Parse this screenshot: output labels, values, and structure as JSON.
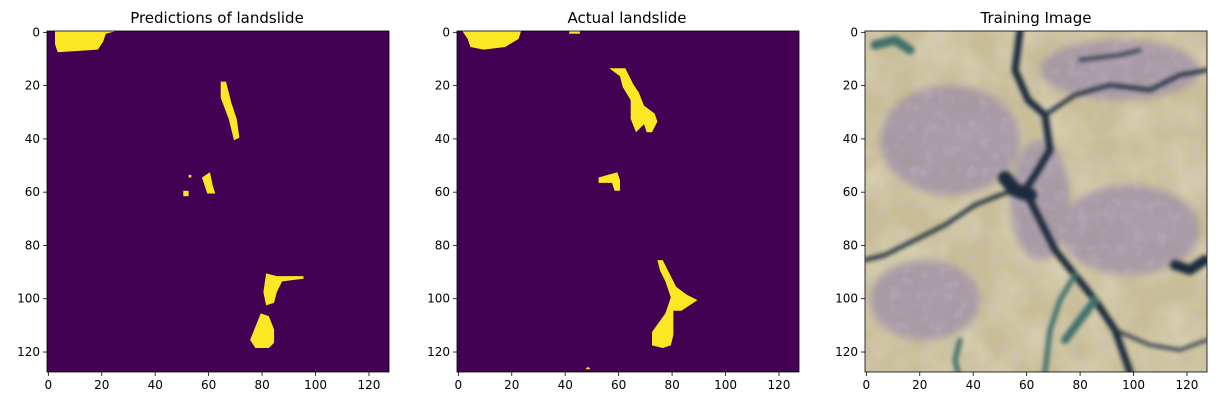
{
  "colors": {
    "background_mask": "#440154",
    "landslide_mask": "#fde725",
    "photo_sand": "#c8bd97",
    "photo_violet": "#9a8aa8",
    "photo_dark_crack": "#1f2c3e",
    "photo_teal": "#3f6f6c"
  },
  "panels": [
    {
      "title": "Predictions of landslide",
      "kind": "binary-mask",
      "xticks": [
        "0",
        "20",
        "40",
        "60",
        "80",
        "100",
        "120"
      ],
      "yticks": [
        "0",
        "20",
        "40",
        "60",
        "80",
        "100",
        "120"
      ],
      "regions": [
        {
          "points": [
            [
              3,
              0
            ],
            [
              26,
              0
            ],
            [
              22,
              1
            ],
            [
              21,
              4
            ],
            [
              19,
              7
            ],
            [
              4,
              8
            ],
            [
              3,
              5
            ]
          ]
        },
        {
          "points": [
            [
              65,
              19
            ],
            [
              67,
              19
            ],
            [
              69,
              27
            ],
            [
              71,
              33
            ],
            [
              72,
              40
            ],
            [
              70,
              41
            ],
            [
              68,
              33
            ],
            [
              65,
              25
            ]
          ]
        },
        {
          "points": [
            [
              58,
              55
            ],
            [
              61,
              53
            ],
            [
              62,
              58
            ],
            [
              63,
              61
            ],
            [
              60,
              61
            ],
            [
              59,
              58
            ]
          ]
        },
        {
          "points": [
            [
              51,
              60
            ],
            [
              53,
              60
            ],
            [
              53,
              62
            ],
            [
              51,
              62
            ]
          ]
        },
        {
          "points": [
            [
              53,
              54
            ],
            [
              54,
              54
            ],
            [
              54,
              55
            ],
            [
              53,
              55
            ]
          ]
        },
        {
          "points": [
            [
              82,
              91
            ],
            [
              86,
              92
            ],
            [
              96,
              92
            ],
            [
              96,
              93
            ],
            [
              88,
              94
            ],
            [
              86,
              98
            ],
            [
              85,
              102
            ],
            [
              82,
              103
            ],
            [
              81,
              98
            ]
          ]
        },
        {
          "points": [
            [
              80,
              106
            ],
            [
              83,
              107
            ],
            [
              85,
              112
            ],
            [
              85,
              117
            ],
            [
              83,
              119
            ],
            [
              78,
              119
            ],
            [
              76,
              116
            ],
            [
              78,
              111
            ]
          ]
        }
      ]
    },
    {
      "title": "Actual landslide",
      "kind": "binary-mask",
      "xticks": [
        "0",
        "20",
        "40",
        "60",
        "80",
        "100",
        "120"
      ],
      "yticks": [
        "0",
        "20",
        "40",
        "60",
        "80",
        "100",
        "120"
      ],
      "regions": [
        {
          "points": [
            [
              2,
              0
            ],
            [
              24,
              0
            ],
            [
              23,
              3
            ],
            [
              18,
              6
            ],
            [
              10,
              7
            ],
            [
              5,
              6
            ],
            [
              4,
              3
            ]
          ]
        },
        {
          "points": [
            [
              42,
              0
            ],
            [
              46,
              0
            ],
            [
              46,
              1
            ],
            [
              42,
              1
            ]
          ]
        },
        {
          "points": [
            [
              57,
              14
            ],
            [
              63,
              14
            ],
            [
              66,
              20
            ],
            [
              68,
              23
            ],
            [
              70,
              28
            ],
            [
              74,
              31
            ],
            [
              75,
              34
            ],
            [
              73,
              38
            ],
            [
              71,
              38
            ],
            [
              70,
              35
            ],
            [
              67,
              38
            ],
            [
              65,
              33
            ],
            [
              65,
              26
            ],
            [
              62,
              21
            ],
            [
              61,
              17
            ]
          ]
        },
        {
          "points": [
            [
              53,
              55
            ],
            [
              60,
              53
            ],
            [
              61,
              56
            ],
            [
              61,
              60
            ],
            [
              59,
              60
            ],
            [
              58,
              57
            ],
            [
              53,
              57
            ]
          ]
        },
        {
          "points": [
            [
              75,
              86
            ],
            [
              77,
              86
            ],
            [
              80,
              92
            ],
            [
              82,
              96
            ],
            [
              86,
              99
            ],
            [
              90,
              101
            ],
            [
              87,
              103
            ],
            [
              84,
              105
            ],
            [
              81,
              105
            ],
            [
              81,
              110
            ],
            [
              81,
              114
            ],
            [
              80,
              118
            ],
            [
              77,
              119
            ],
            [
              73,
              118
            ],
            [
              73,
              113
            ],
            [
              78,
              106
            ],
            [
              80,
              100
            ],
            [
              78,
              94
            ],
            [
              76,
              90
            ]
          ]
        },
        {
          "points": [
            [
              48,
              127
            ],
            [
              49,
              126
            ],
            [
              50,
              127
            ]
          ]
        }
      ]
    },
    {
      "title": "Training Image",
      "kind": "photo",
      "xticks": [
        "0",
        "20",
        "40",
        "60",
        "80",
        "100",
        "120"
      ],
      "yticks": [
        "0",
        "20",
        "40",
        "60",
        "80",
        "100",
        "120"
      ]
    }
  ]
}
